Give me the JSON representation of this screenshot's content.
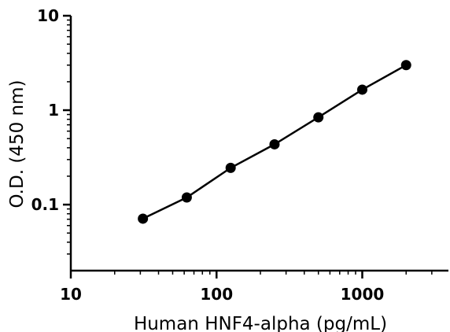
{
  "chart_data": {
    "type": "scatter",
    "title": "",
    "xlabel": "Human HNF4-alpha (pg/mL)",
    "ylabel": "O.D. (450 nm)",
    "x_scale": "log",
    "y_scale": "log",
    "xlim": [
      10,
      4000
    ],
    "ylim": [
      0.02,
      10
    ],
    "x_ticks": [
      {
        "value": 10,
        "label": "10"
      },
      {
        "value": 100,
        "label": "100"
      },
      {
        "value": 1000,
        "label": "1000"
      }
    ],
    "y_ticks": [
      {
        "value": 0.1,
        "label": "0.1"
      },
      {
        "value": 1,
        "label": "1"
      },
      {
        "value": 10,
        "label": "10"
      }
    ],
    "grid": false,
    "legend": "none",
    "fit_line": true,
    "colors": {
      "points": "#000000",
      "line": "#000000",
      "axes": "#000000"
    },
    "series": [
      {
        "x": [
          31.25,
          62.5,
          125,
          250,
          500,
          1000,
          2000
        ],
        "y": [
          0.071,
          0.119,
          0.245,
          0.435,
          0.84,
          1.65,
          3.0
        ]
      }
    ]
  }
}
